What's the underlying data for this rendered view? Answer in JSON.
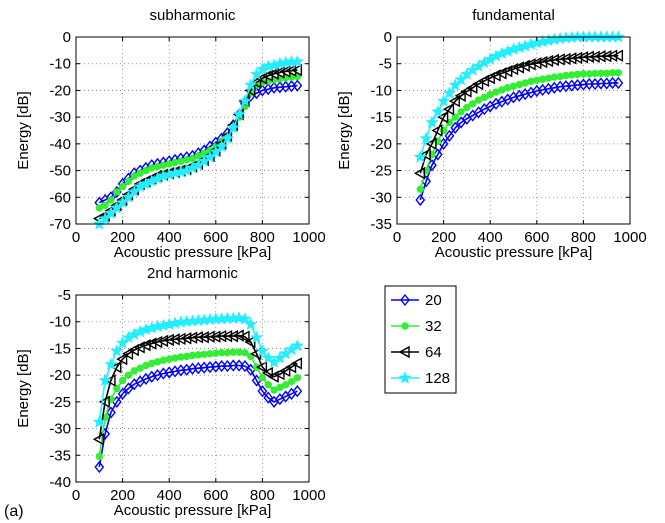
{
  "figure_label": "(a)",
  "colors": {
    "20": "#0000ff",
    "32": "#33ee33",
    "64": "#000000",
    "128": "#22eeff"
  },
  "legend": {
    "entries": [
      {
        "name": "20",
        "color": "#0000ff",
        "marker": "diamond"
      },
      {
        "name": "32",
        "color": "#33ee33",
        "marker": "circle"
      },
      {
        "name": "64",
        "color": "#000000",
        "marker": "triangle-left"
      },
      {
        "name": "128",
        "color": "#22eeff",
        "marker": "star"
      }
    ],
    "placement": "bottom-right"
  },
  "chart_data": [
    {
      "type": "line",
      "title": "subharmonic",
      "xlabel": "Acoustic pressure [kPa]",
      "ylabel": "Energy [dB]",
      "xlim": [
        0,
        1000
      ],
      "ylim": [
        -70,
        0
      ],
      "xticks": [
        0,
        200,
        400,
        600,
        800,
        1000
      ],
      "yticks": [
        -70,
        -60,
        -50,
        -40,
        -30,
        -20,
        -10,
        0
      ],
      "grid": true,
      "x": [
        100,
        125,
        150,
        175,
        200,
        225,
        250,
        275,
        300,
        325,
        350,
        375,
        400,
        425,
        450,
        475,
        500,
        525,
        550,
        575,
        600,
        625,
        650,
        675,
        700,
        725,
        750,
        775,
        800,
        825,
        850,
        875,
        900,
        925,
        950
      ],
      "series": [
        {
          "name": "20",
          "values": [
            -62,
            -61,
            -60,
            -58,
            -55,
            -53,
            -51,
            -50,
            -49,
            -48,
            -47.5,
            -47,
            -46.5,
            -46,
            -45.5,
            -45,
            -44.5,
            -43.5,
            -42.5,
            -41,
            -39.5,
            -38,
            -36,
            -33,
            -29,
            -25,
            -22,
            -21,
            -20,
            -19.5,
            -19,
            -18.8,
            -18.6,
            -18.4,
            -18.2
          ]
        },
        {
          "name": "32",
          "values": [
            -64,
            -63,
            -61,
            -58,
            -56,
            -54,
            -52,
            -51,
            -50,
            -49,
            -48.5,
            -48,
            -47.5,
            -47,
            -46.5,
            -46,
            -45.5,
            -44.5,
            -43.5,
            -42.5,
            -41,
            -39,
            -37,
            -34,
            -30,
            -26,
            -21,
            -18,
            -17,
            -16.5,
            -16,
            -15.6,
            -15.3,
            -15,
            -14.8
          ]
        },
        {
          "name": "64",
          "values": [
            -68,
            -67,
            -65,
            -63,
            -61,
            -59,
            -57,
            -55,
            -54,
            -53,
            -52,
            -51.5,
            -51,
            -50.5,
            -50,
            -49.5,
            -48.5,
            -47.5,
            -46,
            -44.5,
            -42.5,
            -40,
            -37,
            -33,
            -29,
            -24,
            -20,
            -17,
            -15.5,
            -14.5,
            -13.8,
            -13.3,
            -12.9,
            -12.6,
            -12.4
          ]
        },
        {
          "name": "128",
          "values": [
            -70,
            -68,
            -66,
            -64,
            -62,
            -60,
            -58,
            -56,
            -55,
            -54,
            -53,
            -52,
            -51.5,
            -51,
            -50.5,
            -50,
            -49,
            -48,
            -46.5,
            -45,
            -43,
            -41,
            -38,
            -34,
            -29,
            -24,
            -18,
            -14,
            -12,
            -11,
            -10.5,
            -10,
            -9.6,
            -9.3,
            -9.2
          ]
        }
      ]
    },
    {
      "type": "line",
      "title": "fundamental",
      "xlabel": "Acoustic pressure [kPa]",
      "ylabel": "Energy [dB]",
      "xlim": [
        0,
        1000
      ],
      "ylim": [
        -35,
        0
      ],
      "xticks": [
        0,
        200,
        400,
        600,
        800,
        1000
      ],
      "yticks": [
        -35,
        -30,
        -25,
        -20,
        -15,
        -10,
        -5,
        0
      ],
      "grid": true,
      "x": [
        100,
        125,
        150,
        175,
        200,
        225,
        250,
        275,
        300,
        325,
        350,
        375,
        400,
        425,
        450,
        475,
        500,
        525,
        550,
        575,
        600,
        625,
        650,
        675,
        700,
        725,
        750,
        775,
        800,
        825,
        850,
        875,
        900,
        925,
        950
      ],
      "series": [
        {
          "name": "20",
          "values": [
            -30.5,
            -27,
            -24,
            -22,
            -20,
            -18.5,
            -17,
            -16,
            -15.3,
            -14.7,
            -14.1,
            -13.5,
            -13,
            -12.5,
            -12.1,
            -11.7,
            -11.3,
            -11,
            -10.7,
            -10.4,
            -10.1,
            -9.9,
            -9.7,
            -9.5,
            -9.3,
            -9.2,
            -9.1,
            -9,
            -8.9,
            -8.8,
            -8.8,
            -8.7,
            -8.7,
            -8.6,
            -8.6
          ]
        },
        {
          "name": "32",
          "values": [
            -28.5,
            -25,
            -22,
            -19.5,
            -17.5,
            -16,
            -15,
            -14,
            -13.2,
            -12.5,
            -11.8,
            -11.3,
            -10.8,
            -10.3,
            -9.9,
            -9.5,
            -9.2,
            -8.9,
            -8.6,
            -8.3,
            -8.1,
            -7.9,
            -7.7,
            -7.5,
            -7.4,
            -7.2,
            -7.1,
            -7,
            -6.9,
            -6.9,
            -6.8,
            -6.8,
            -6.8,
            -6.7,
            -6.7
          ]
        },
        {
          "name": "64",
          "values": [
            -25.5,
            -22,
            -20,
            -17.5,
            -15,
            -13.5,
            -12,
            -11,
            -10.2,
            -9.5,
            -8.8,
            -8.2,
            -7.7,
            -7.2,
            -6.8,
            -6.4,
            -6,
            -5.7,
            -5.4,
            -5.1,
            -4.9,
            -4.7,
            -4.5,
            -4.3,
            -4.2,
            -4.1,
            -4,
            -3.9,
            -3.8,
            -3.7,
            -3.7,
            -3.6,
            -3.6,
            -3.5,
            -3.5
          ]
        },
        {
          "name": "128",
          "values": [
            -22.5,
            -19,
            -16,
            -14,
            -12,
            -10.5,
            -9,
            -8,
            -7,
            -6.2,
            -5.5,
            -4.8,
            -4.2,
            -3.6,
            -3.1,
            -2.7,
            -2.3,
            -2,
            -1.7,
            -1.4,
            -1.1,
            -0.9,
            -0.7,
            -0.5,
            -0.3,
            -0.2,
            -0.1,
            0,
            0,
            0,
            0,
            0,
            0,
            0,
            0
          ]
        }
      ]
    },
    {
      "type": "line",
      "title": "2nd harmonic",
      "xlabel": "Acoustic pressure [kPa]",
      "ylabel": "Energy [dB]",
      "xlim": [
        0,
        1000
      ],
      "ylim": [
        -40,
        -5
      ],
      "xticks": [
        0,
        200,
        400,
        600,
        800,
        1000
      ],
      "yticks": [
        -40,
        -35,
        -30,
        -25,
        -20,
        -15,
        -10,
        -5
      ],
      "grid": true,
      "x": [
        100,
        125,
        150,
        175,
        200,
        225,
        250,
        275,
        300,
        325,
        350,
        375,
        400,
        425,
        450,
        475,
        500,
        525,
        550,
        575,
        600,
        625,
        650,
        675,
        700,
        725,
        750,
        775,
        800,
        825,
        850,
        875,
        900,
        925,
        950
      ],
      "series": [
        {
          "name": "20",
          "values": [
            -37.2,
            -31,
            -27,
            -25,
            -23.5,
            -22.5,
            -21.7,
            -21.2,
            -20.7,
            -20.3,
            -20,
            -19.7,
            -19.5,
            -19.3,
            -19.1,
            -19,
            -18.8,
            -18.7,
            -18.6,
            -18.5,
            -18.4,
            -18.3,
            -18.3,
            -18.2,
            -18.2,
            -18.3,
            -19,
            -21,
            -23,
            -24.2,
            -25,
            -24.5,
            -24,
            -23.5,
            -23
          ]
        },
        {
          "name": "32",
          "values": [
            -35.2,
            -28,
            -24.5,
            -22.5,
            -21,
            -20,
            -19.2,
            -18.7,
            -18.2,
            -17.8,
            -17.5,
            -17.2,
            -17,
            -16.8,
            -16.6,
            -16.5,
            -16.3,
            -16.2,
            -16.1,
            -16,
            -15.9,
            -15.8,
            -15.8,
            -15.7,
            -15.7,
            -15.8,
            -16.5,
            -18.5,
            -20.5,
            -21.8,
            -22.8,
            -22.3,
            -21.8,
            -21.2,
            -20.5
          ]
        },
        {
          "name": "64",
          "values": [
            -32,
            -25,
            -21,
            -18.5,
            -17,
            -16,
            -15.3,
            -14.8,
            -14.4,
            -14.1,
            -13.8,
            -13.6,
            -13.4,
            -13.3,
            -13.2,
            -13.1,
            -13,
            -12.9,
            -12.9,
            -12.8,
            -12.8,
            -12.7,
            -12.7,
            -12.7,
            -12.6,
            -12.8,
            -13.8,
            -16,
            -18.5,
            -19.6,
            -20.3,
            -19.8,
            -19.2,
            -18.5,
            -17.8
          ]
        },
        {
          "name": "128",
          "values": [
            -28.8,
            -21,
            -18,
            -15.5,
            -14,
            -13,
            -12.4,
            -11.9,
            -11.5,
            -11.2,
            -10.9,
            -10.7,
            -10.5,
            -10.3,
            -10.1,
            -10,
            -9.9,
            -9.8,
            -9.7,
            -9.6,
            -9.5,
            -9.5,
            -9.4,
            -9.4,
            -9.3,
            -9.5,
            -10.5,
            -13,
            -15.5,
            -16.8,
            -17.6,
            -16.8,
            -16,
            -15.2,
            -14.5
          ]
        }
      ]
    }
  ]
}
